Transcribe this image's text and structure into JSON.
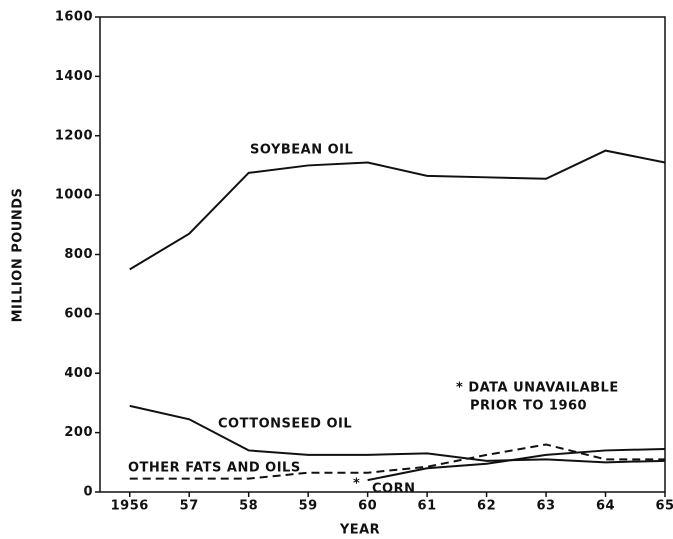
{
  "chart_data": {
    "type": "line",
    "xlabel": "YEAR",
    "ylabel": "MILLION POUNDS",
    "x": [
      1956,
      1957,
      1958,
      1959,
      1960,
      1961,
      1962,
      1963,
      1964,
      1965
    ],
    "xlim": [
      1955.5,
      1965
    ],
    "ylim": [
      0,
      1600
    ],
    "xticks": [
      {
        "value": 1956,
        "label": "1956"
      },
      {
        "value": 1957,
        "label": "57"
      },
      {
        "value": 1958,
        "label": "58"
      },
      {
        "value": 1959,
        "label": "59"
      },
      {
        "value": 1960,
        "label": "60"
      },
      {
        "value": 1961,
        "label": "61"
      },
      {
        "value": 1962,
        "label": "62"
      },
      {
        "value": 1963,
        "label": "63"
      },
      {
        "value": 1964,
        "label": "64"
      },
      {
        "value": 1965,
        "label": "65"
      }
    ],
    "yticks": [
      0,
      200,
      400,
      600,
      800,
      1000,
      1200,
      1400,
      1600
    ],
    "series": [
      {
        "name": "SOYBEAN OIL",
        "color": "#111111",
        "dashed": false,
        "values": [
          750,
          870,
          1075,
          1100,
          1110,
          1065,
          1060,
          1055,
          1150,
          1110
        ]
      },
      {
        "name": "COTTONSEED OIL",
        "color": "#111111",
        "dashed": false,
        "values": [
          290,
          245,
          140,
          125,
          125,
          130,
          105,
          110,
          100,
          105
        ]
      },
      {
        "name": "OTHER FATS AND OILS",
        "color": "#111111",
        "dashed": true,
        "values": [
          45,
          45,
          45,
          65,
          65,
          85,
          125,
          160,
          110,
          110
        ]
      },
      {
        "name": "CORN",
        "color": "#111111",
        "dashed": false,
        "values": [
          null,
          null,
          null,
          null,
          40,
          80,
          95,
          125,
          140,
          145
        ]
      }
    ],
    "annotations": [
      "*",
      "* DATA UNAVAILABLE",
      "PRIOR TO 1960"
    ]
  }
}
